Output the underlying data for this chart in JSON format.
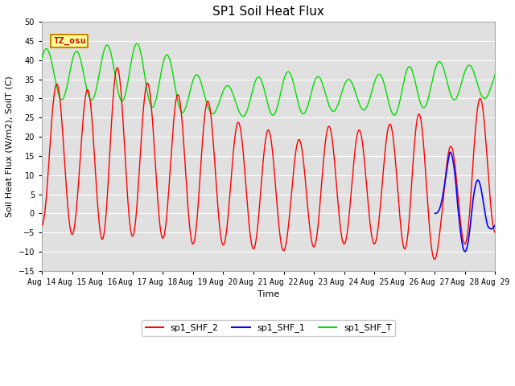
{
  "title": "SP1 Soil Heat Flux",
  "xlabel": "Time",
  "ylabel": "Soil Heat Flux (W/m2), SoilT (C)",
  "ylim": [
    -15,
    50
  ],
  "x_tick_labels": [
    "Aug 14",
    "Aug 15",
    "Aug 16",
    "Aug 17",
    "Aug 18",
    "Aug 19",
    "Aug 20",
    "Aug 21",
    "Aug 22",
    "Aug 23",
    "Aug 24",
    "Aug 25",
    "Aug 26",
    "Aug 27",
    "Aug 28",
    "Aug 29"
  ],
  "bg_color": "#e0e0e0",
  "grid_color": "#ffffff",
  "tz_label": "TZ_osu",
  "tz_box_color": "#ffff99",
  "tz_border_color": "#cc8800",
  "tz_text_color": "#cc0000",
  "line_colors": {
    "sp1_SHF_2": "#ff0000",
    "sp1_SHF_1": "#0000ff",
    "sp1_SHF_T": "#00dd00"
  },
  "legend_labels": [
    "sp1_SHF_2",
    "sp1_SHF_1",
    "sp1_SHF_T"
  ],
  "title_fontsize": 11,
  "label_fontsize": 8,
  "tick_fontsize": 7
}
